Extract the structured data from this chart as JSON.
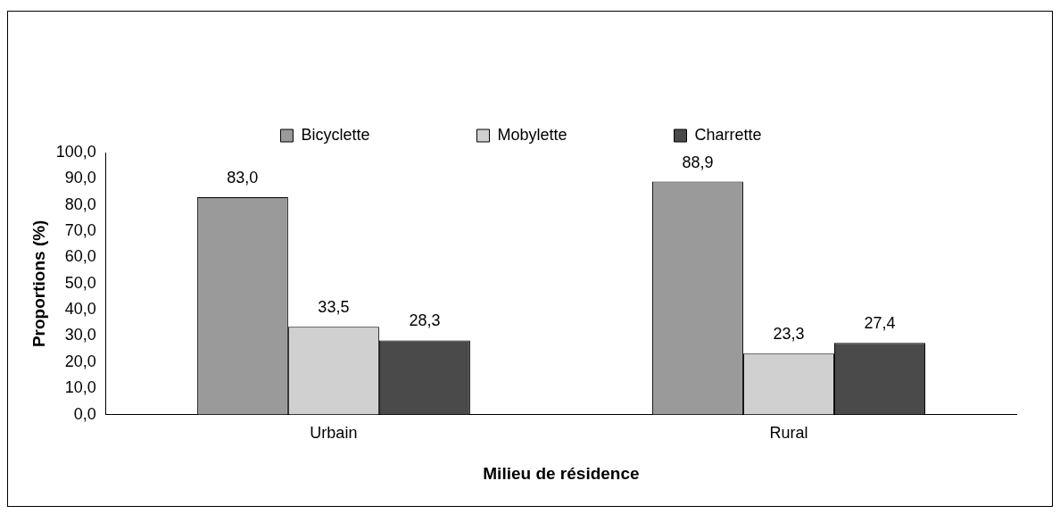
{
  "chart_data": {
    "type": "bar",
    "categories": [
      "Urbain",
      "Rural"
    ],
    "series": [
      {
        "name": "Bicyclette",
        "color": "#9a9a9a",
        "values": [
          83.0,
          88.9
        ]
      },
      {
        "name": "Mobylette",
        "color": "#d0d0d0",
        "values": [
          33.5,
          23.3
        ]
      },
      {
        "name": "Charrette",
        "color": "#4a4a4a",
        "values": [
          28.3,
          27.4
        ]
      }
    ],
    "xlabel": "Milieu de résidence",
    "ylabel": "Proportions (%)",
    "ylim": [
      0,
      100
    ],
    "yticks": [
      {
        "value": 0,
        "label": "0,0"
      },
      {
        "value": 10,
        "label": "10,0"
      },
      {
        "value": 20,
        "label": "20,0"
      },
      {
        "value": 30,
        "label": "30,0"
      },
      {
        "value": 40,
        "label": "40,0"
      },
      {
        "value": 50,
        "label": "50,0"
      },
      {
        "value": 60,
        "label": "60,0"
      },
      {
        "value": 70,
        "label": "70,0"
      },
      {
        "value": 80,
        "label": "80,0"
      },
      {
        "value": 90,
        "label": "90,0"
      },
      {
        "value": 100,
        "label": "100,0"
      }
    ],
    "value_labels": [
      [
        "83,0",
        "88,9"
      ],
      [
        "33,5",
        "23,3"
      ],
      [
        "28,3",
        "27,4"
      ]
    ],
    "grid": false,
    "legend": "top"
  }
}
